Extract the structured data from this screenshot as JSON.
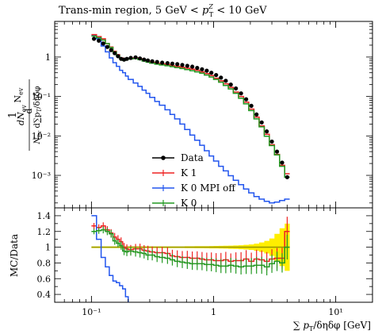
{
  "chart_data": {
    "type": "line",
    "title": "Trans-min region, 5 GeV < p_T^Z < 10 GeV",
    "xlabel": "∑ p_T/δηδφ [GeV]",
    "ylabel_main": "(1/N_ev) dN_ev / d∑p_T/δηδφ",
    "ylabel_ratio": "MC/Data",
    "xscale": "log",
    "xlim": [
      0.05,
      20
    ],
    "ylim_main": [
      0.00015,
      8
    ],
    "yscale_main": "log",
    "ylim_ratio": [
      0.3,
      1.5
    ],
    "xticks": [
      {
        "v": 0.1,
        "label": "10⁻¹"
      },
      {
        "v": 1,
        "label": "1"
      },
      {
        "v": 10,
        "label": "10¹"
      }
    ],
    "yticks_main": [
      {
        "v": 0.001,
        "label": "10⁻³"
      },
      {
        "v": 0.01,
        "label": "10⁻²"
      },
      {
        "v": 0.1,
        "label": "10⁻¹"
      },
      {
        "v": 1,
        "label": "1"
      }
    ],
    "yticks_ratio": [
      {
        "v": 0.4,
        "label": "0.4"
      },
      {
        "v": 0.6,
        "label": "0.6"
      },
      {
        "v": 0.8,
        "label": "0.8"
      },
      {
        "v": 1.0,
        "label": "1"
      },
      {
        "v": 1.2,
        "label": "1.2"
      },
      {
        "v": 1.4,
        "label": "1.4"
      }
    ],
    "legend_position": "bottom-center",
    "legend": [
      "Data",
      "K 1",
      "K 0 MPI off",
      "K 0"
    ],
    "colors": {
      "Data": "#000000",
      "K 1": "#ee2222",
      "K 0 MPI off": "#2255ee",
      "K 0": "#229922",
      "band": "#ffee00"
    },
    "bin_edges": [
      0.1,
      0.11,
      0.12,
      0.13,
      0.14,
      0.15,
      0.16,
      0.17,
      0.18,
      0.19,
      0.2,
      0.22,
      0.24,
      0.26,
      0.28,
      0.3,
      0.33,
      0.36,
      0.4,
      0.44,
      0.48,
      0.53,
      0.58,
      0.64,
      0.7,
      0.77,
      0.84,
      0.92,
      1.0,
      1.1,
      1.2,
      1.32,
      1.45,
      1.6,
      1.76,
      1.94,
      2.14,
      2.36,
      2.6,
      2.86,
      3.15,
      3.47,
      3.82,
      4.2
    ],
    "series": [
      {
        "name": "Data",
        "values": [
          2.9,
          2.6,
          2.2,
          1.8,
          1.5,
          1.25,
          1.05,
          0.9,
          0.86,
          0.9,
          0.95,
          0.98,
          0.92,
          0.86,
          0.82,
          0.78,
          0.75,
          0.72,
          0.7,
          0.68,
          0.66,
          0.63,
          0.6,
          0.57,
          0.53,
          0.49,
          0.45,
          0.4,
          0.35,
          0.3,
          0.25,
          0.2,
          0.16,
          0.12,
          0.085,
          0.058,
          0.035,
          0.022,
          0.013,
          0.0072,
          0.004,
          0.0021,
          0.0009
        ]
      },
      {
        "name": "K 1",
        "values": [
          3.7,
          3.3,
          2.9,
          2.2,
          1.8,
          1.4,
          1.15,
          0.95,
          0.85,
          0.88,
          0.92,
          0.95,
          0.9,
          0.82,
          0.78,
          0.73,
          0.69,
          0.67,
          0.64,
          0.6,
          0.58,
          0.55,
          0.52,
          0.49,
          0.46,
          0.42,
          0.38,
          0.34,
          0.29,
          0.25,
          0.21,
          0.17,
          0.13,
          0.1,
          0.072,
          0.048,
          0.03,
          0.018,
          0.011,
          0.006,
          0.0034,
          0.0018,
          0.0011
        ]
      },
      {
        "name": "K 0 MPI off",
        "values": [
          3.5,
          2.9,
          1.9,
          1.35,
          0.95,
          0.72,
          0.58,
          0.46,
          0.4,
          0.33,
          0.27,
          0.22,
          0.18,
          0.145,
          0.12,
          0.095,
          0.075,
          0.06,
          0.046,
          0.035,
          0.027,
          0.02,
          0.0145,
          0.0105,
          0.0078,
          0.0058,
          0.0042,
          0.0031,
          0.0023,
          0.0017,
          0.0013,
          0.00098,
          0.00075,
          0.00058,
          0.00045,
          0.00036,
          0.00029,
          0.00025,
          0.00022,
          0.0002,
          0.00021,
          0.00023,
          0.00025
        ]
      },
      {
        "name": "K 0",
        "values": [
          3.4,
          3.1,
          2.7,
          2.2,
          1.75,
          1.35,
          1.1,
          0.92,
          0.82,
          0.85,
          0.9,
          0.92,
          0.86,
          0.79,
          0.74,
          0.7,
          0.66,
          0.63,
          0.6,
          0.57,
          0.54,
          0.51,
          0.48,
          0.45,
          0.42,
          0.39,
          0.35,
          0.31,
          0.27,
          0.23,
          0.19,
          0.155,
          0.12,
          0.09,
          0.065,
          0.044,
          0.027,
          0.017,
          0.0098,
          0.0057,
          0.0033,
          0.0017,
          0.0009
        ]
      }
    ],
    "ratio_series": [
      {
        "name": "K 1",
        "values": [
          1.27,
          1.25,
          1.27,
          1.22,
          1.18,
          1.13,
          1.1,
          1.07,
          1.0,
          0.98,
          0.97,
          0.98,
          0.98,
          0.96,
          0.95,
          0.94,
          0.93,
          0.93,
          0.92,
          0.89,
          0.88,
          0.87,
          0.87,
          0.86,
          0.86,
          0.85,
          0.84,
          0.84,
          0.83,
          0.83,
          0.84,
          0.82,
          0.83,
          0.83,
          0.85,
          0.82,
          0.85,
          0.84,
          0.82,
          0.85,
          0.86,
          0.86,
          1.2
        ]
      },
      {
        "name": "K 0 MPI off",
        "values": [
          1.4,
          1.1,
          0.87,
          0.75,
          0.64,
          0.57,
          0.55,
          0.51,
          0.47,
          0.37,
          0.29,
          0.23,
          0.2,
          0.17,
          0.15,
          0.12,
          0.1,
          0.08,
          0.065,
          0.05,
          0.04,
          0.03,
          0.024,
          0.018,
          0.015,
          0.012,
          0.009,
          0.008,
          0.007,
          0.006,
          0.005,
          0.005,
          0.005,
          0.005,
          0.005,
          0.006,
          0.008,
          0.011,
          0.017,
          0.028,
          0.052,
          0.11,
          0.28
        ]
      },
      {
        "name": "K 0",
        "values": [
          1.2,
          1.21,
          1.22,
          1.2,
          1.17,
          1.08,
          1.05,
          1.02,
          0.95,
          0.94,
          0.95,
          0.94,
          0.93,
          0.92,
          0.9,
          0.9,
          0.88,
          0.87,
          0.86,
          0.84,
          0.82,
          0.81,
          0.8,
          0.79,
          0.79,
          0.79,
          0.78,
          0.78,
          0.77,
          0.76,
          0.76,
          0.77,
          0.76,
          0.75,
          0.76,
          0.76,
          0.77,
          0.77,
          0.75,
          0.79,
          0.82,
          0.8,
          1.0
        ]
      }
    ],
    "data_band_halfwidth": [
      0.01,
      0.01,
      0.01,
      0.01,
      0.01,
      0.01,
      0.01,
      0.01,
      0.01,
      0.01,
      0.01,
      0.01,
      0.01,
      0.01,
      0.01,
      0.01,
      0.01,
      0.01,
      0.01,
      0.01,
      0.01,
      0.01,
      0.012,
      0.012,
      0.013,
      0.013,
      0.014,
      0.015,
      0.016,
      0.017,
      0.018,
      0.02,
      0.022,
      0.025,
      0.03,
      0.035,
      0.045,
      0.06,
      0.08,
      0.11,
      0.17,
      0.24,
      0.3
    ]
  }
}
